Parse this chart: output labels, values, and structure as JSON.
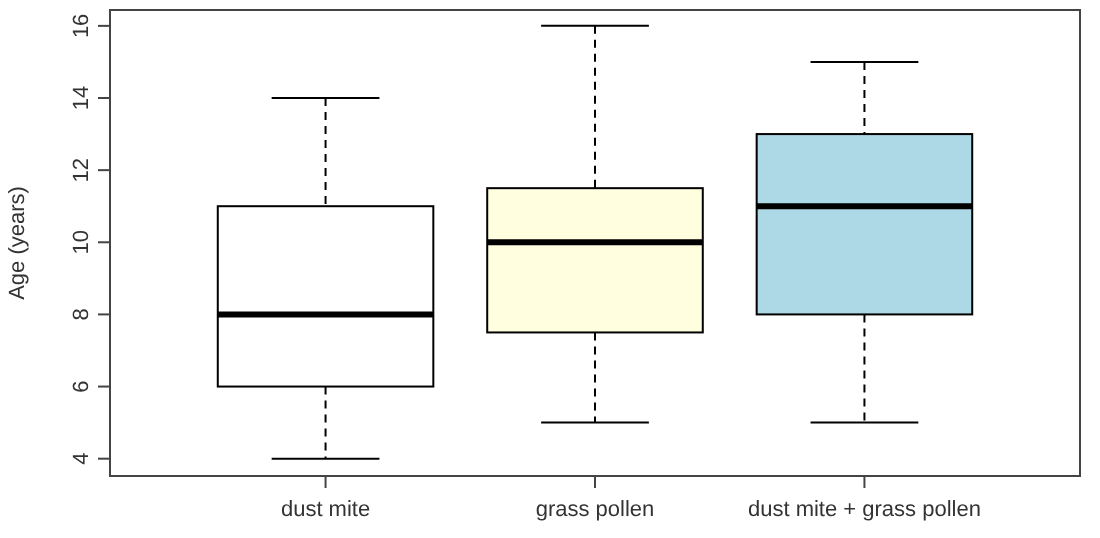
{
  "chart_data": {
    "type": "box",
    "ylabel": "Age (years)",
    "categories": [
      "dust mite",
      "grass pollen",
      "dust mite + grass pollen"
    ],
    "colors": [
      "#ffffff",
      "#ffffe0",
      "#add8e6"
    ],
    "boxes": [
      {
        "low": 4,
        "q1": 6,
        "median": 8,
        "q3": 11,
        "high": 14
      },
      {
        "low": 5,
        "q1": 7.5,
        "median": 10,
        "q3": 11.5,
        "high": 16
      },
      {
        "low": 5,
        "q1": 8,
        "median": 11,
        "q3": 13,
        "high": 15
      }
    ],
    "ylim": [
      3.52,
      16.44
    ],
    "yticks": [
      4,
      6,
      8,
      10,
      12,
      14,
      16
    ],
    "grid": false
  }
}
